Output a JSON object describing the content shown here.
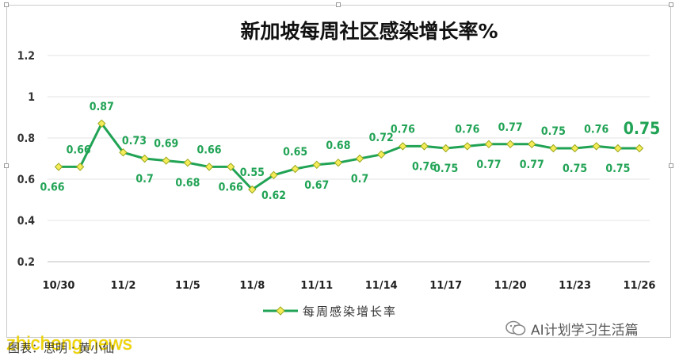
{
  "chart_data": {
    "type": "line",
    "title": "新加坡每周社区感染增长率%",
    "x": [
      "10/30",
      "10/31",
      "11/1",
      "11/2",
      "11/3",
      "11/4",
      "11/5",
      "11/6",
      "11/7",
      "11/8",
      "11/9",
      "11/10",
      "11/11",
      "11/12",
      "11/13",
      "11/14",
      "11/15",
      "11/16",
      "11/17",
      "11/18",
      "11/19",
      "11/20",
      "11/21",
      "11/22",
      "11/23",
      "11/24",
      "11/25",
      "11/26"
    ],
    "x_tick_labels": [
      "10/30",
      "11/2",
      "11/5",
      "11/8",
      "11/11",
      "11/14",
      "11/17",
      "11/20",
      "11/23",
      "11/26"
    ],
    "series": [
      {
        "name": "每周感染增长率",
        "color": "#21a355",
        "marker_color": "#f5ec5a",
        "values": [
          0.66,
          0.66,
          0.87,
          0.73,
          0.7,
          0.69,
          0.68,
          0.66,
          0.66,
          0.55,
          0.62,
          0.65,
          0.67,
          0.68,
          0.7,
          0.72,
          0.76,
          0.76,
          0.75,
          0.76,
          0.77,
          0.77,
          0.77,
          0.75,
          0.75,
          0.76,
          0.75,
          0.75
        ]
      }
    ],
    "data_labels": [
      "0.66",
      "0.66",
      "0.87",
      "0.73",
      "0.7",
      "0.69",
      "0.68",
      "0.66",
      "0.66",
      "0.55",
      "0.62",
      "0.65",
      "0.67",
      "0.68",
      "0.7",
      "0.72",
      "0.76",
      "0.76",
      "0.75",
      "0.76",
      "0.77",
      "0.77",
      "0.77",
      "0.75",
      "0.75",
      "0.76",
      "0.75",
      "0.75"
    ],
    "y_tick_labels": [
      "0.2",
      "0.4",
      "0.6",
      "0.8",
      "1",
      "1.2"
    ],
    "ylim": [
      0.2,
      1.2
    ],
    "grid": true,
    "legend": "bottom-center"
  },
  "footer": {
    "source_text": "图表：思明 · 黄小仙"
  },
  "watermark": "zhicheng.news",
  "wechat": {
    "account": "AI计划学习生活篇",
    "icon": "wechat-icon"
  }
}
